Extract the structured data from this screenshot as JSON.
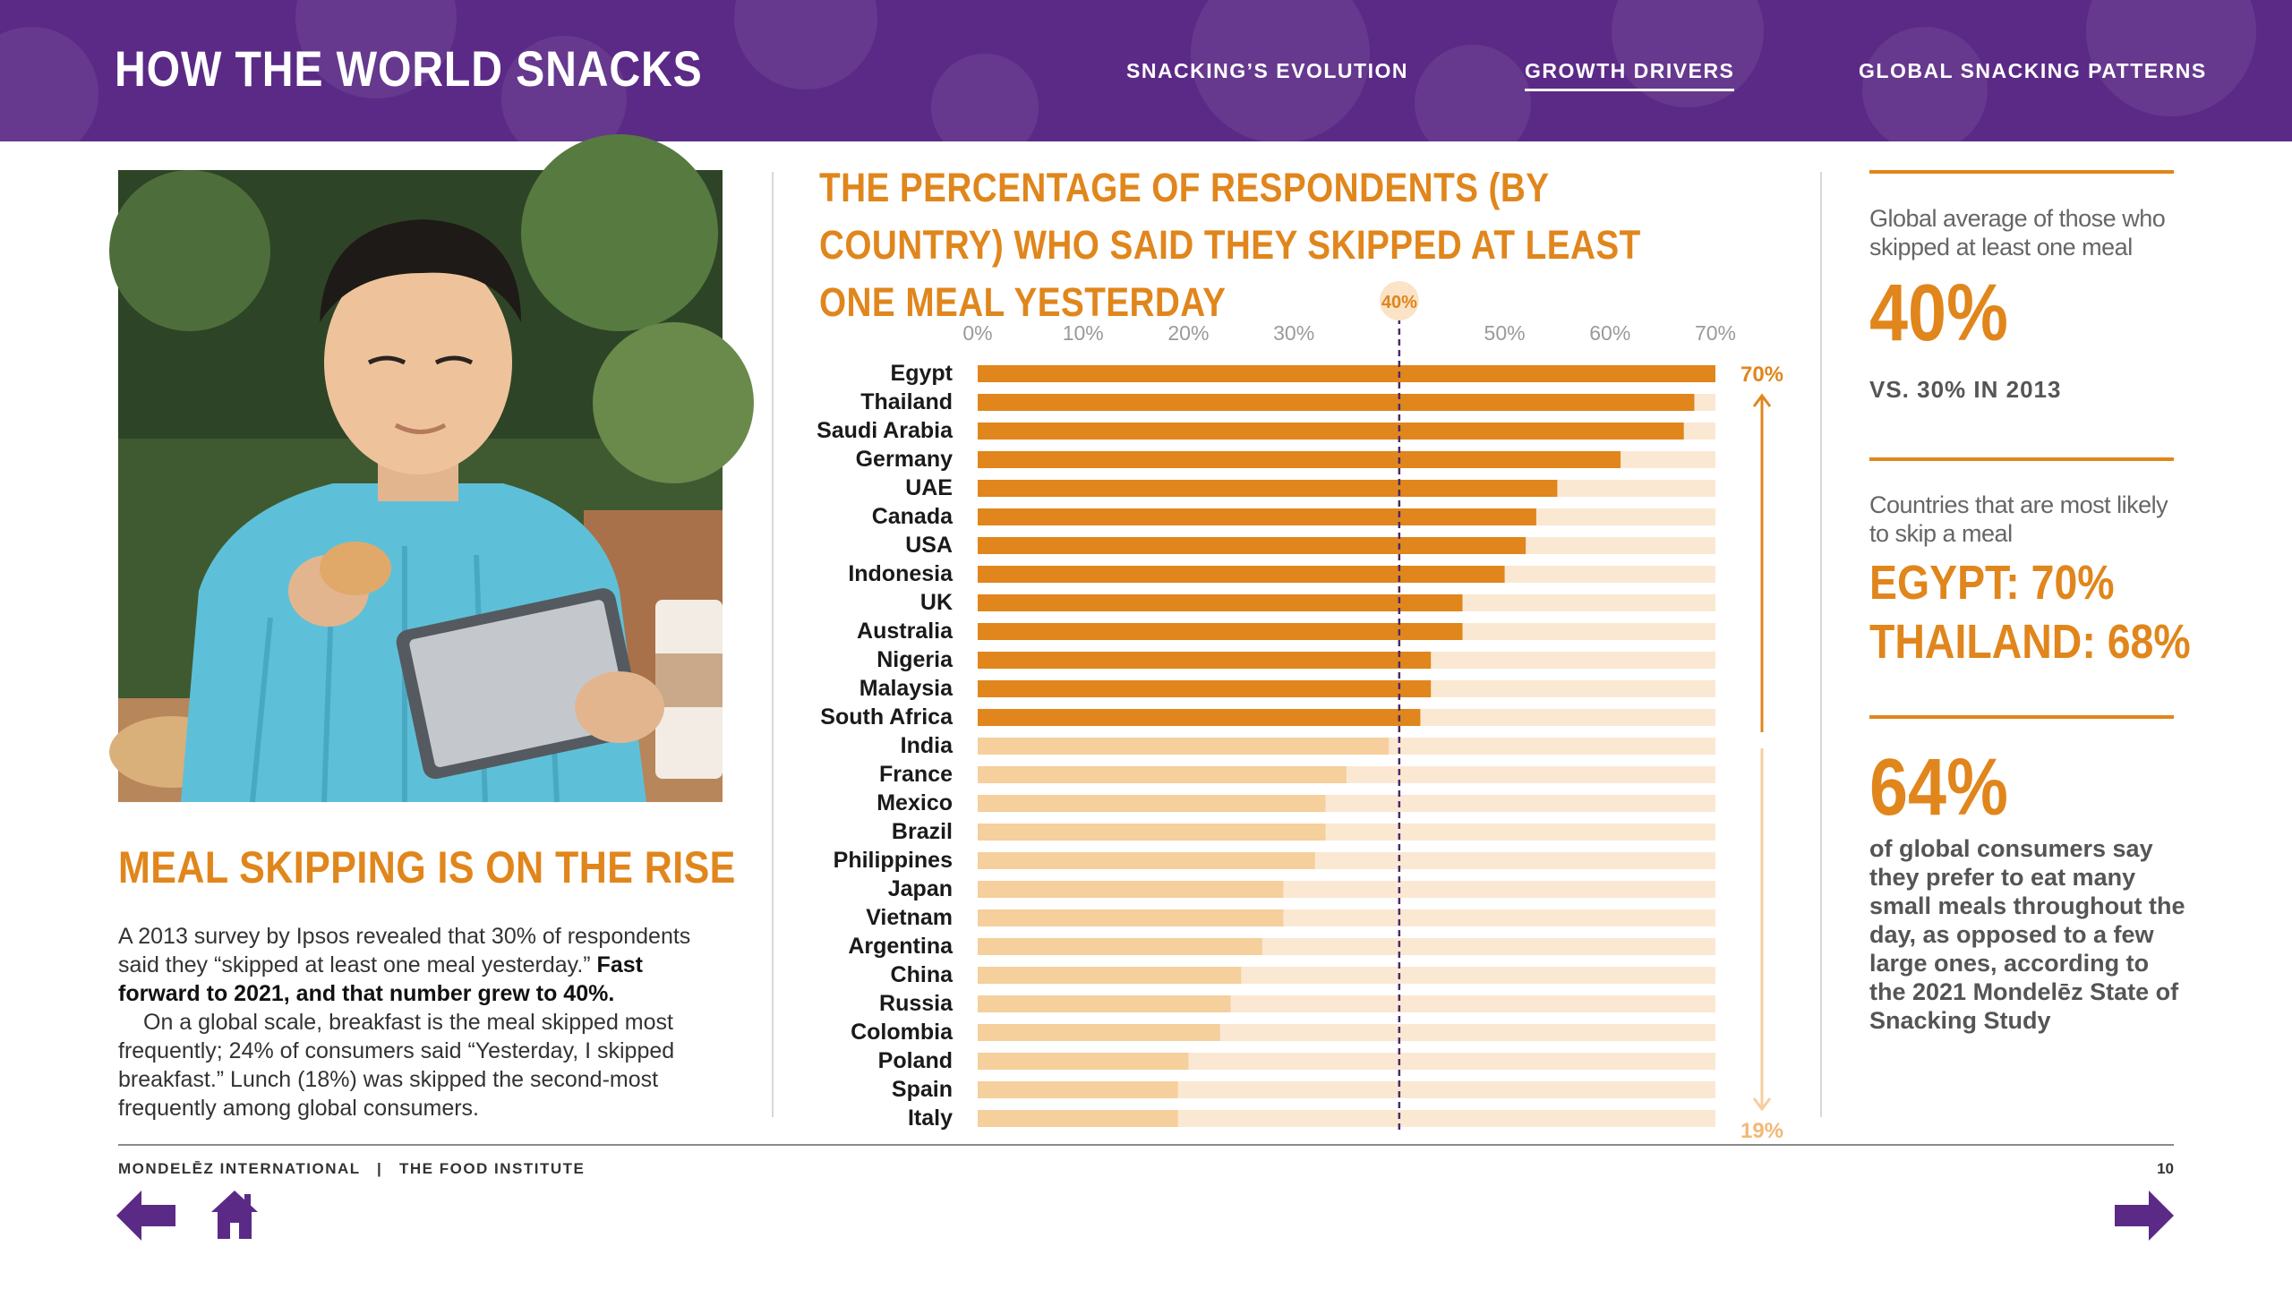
{
  "header": {
    "title": "HOW THE WORLD SNACKS",
    "nav": [
      {
        "label": "SNACKING’S EVOLUTION",
        "active": false
      },
      {
        "label": "GROWTH DRIVERS",
        "active": true
      },
      {
        "label": "GLOBAL SNACKING PATTERNS",
        "active": false
      }
    ]
  },
  "left": {
    "heading": "MEAL SKIPPING IS ON THE RISE",
    "p1_text": "A 2013 survey by Ipsos revealed that 30% of respondents said they “skipped at least one meal yesterday.” ",
    "p1_bold": "Fast forward to 2021, and that number grew to 40%.",
    "p2_text": "On a global scale, breakfast is the meal skipped most frequently; 24% of consumers said “Yesterday, I skipped breakfast.” Lunch (18%) was skipped the second-most frequently among global consumers."
  },
  "chart_data": {
    "type": "bar",
    "orientation": "horizontal",
    "title": "THE PERCENTAGE OF RESPONDENTS (BY COUNTRY) WHO SAID THEY SKIPPED AT LEAST ONE MEAL YESTERDAY",
    "xlim": [
      0,
      70
    ],
    "ticks": [
      "0%",
      "10%",
      "20%",
      "30%",
      "50%",
      "60%",
      "70%"
    ],
    "tick_values": [
      0,
      10,
      20,
      30,
      50,
      60,
      70
    ],
    "reference_line": {
      "value": 40,
      "label": "40%"
    },
    "range_labels": {
      "top": "70%",
      "bottom": "19%"
    },
    "categories": [
      "Egypt",
      "Thailand",
      "Saudi Arabia",
      "Germany",
      "UAE",
      "Canada",
      "USA",
      "Indonesia",
      "UK",
      "Australia",
      "Nigeria",
      "Malaysia",
      "South Africa",
      "India",
      "France",
      "Mexico",
      "Brazil",
      "Philippines",
      "Japan",
      "Vietnam",
      "Argentina",
      "China",
      "Russia",
      "Colombia",
      "Poland",
      "Spain",
      "Italy"
    ],
    "values": [
      70,
      68,
      67,
      61,
      55,
      53,
      52,
      50,
      46,
      46,
      43,
      43,
      42,
      39,
      35,
      33,
      33,
      32,
      29,
      29,
      27,
      25,
      24,
      23,
      20,
      19,
      19
    ],
    "colors": {
      "above_average": "#e0861c",
      "below_average": "#f5cf9c",
      "track": "#fbe8d3",
      "reference": "#4a2a6a"
    }
  },
  "right": {
    "stat1_label": "Global average of those who skipped at least one meal",
    "stat1_value": "40%",
    "stat1_sub": "VS. 30% IN 2013",
    "stat2_label": "Countries that are most likely to skip a meal",
    "stat2_line1": "EGYPT: 70%",
    "stat2_line2": "THAILAND: 68%",
    "stat3_value": "64%",
    "stat3_text": "of global consumers say they prefer to eat many small meals throughout the day, as opposed to a few large ones, according to the 2021 Mondelēz State of Snacking Study"
  },
  "footer": {
    "brand": "MONDELĒZ INTERNATIONAL",
    "separator": "|",
    "partner": "THE FOOD INSTITUTE",
    "page": "10"
  },
  "icons": {
    "back": "arrow-left-icon",
    "home": "home-icon",
    "next": "arrow-right-icon"
  },
  "brand_colors": {
    "purple": "#5b2a86",
    "orange": "#e0861c"
  }
}
